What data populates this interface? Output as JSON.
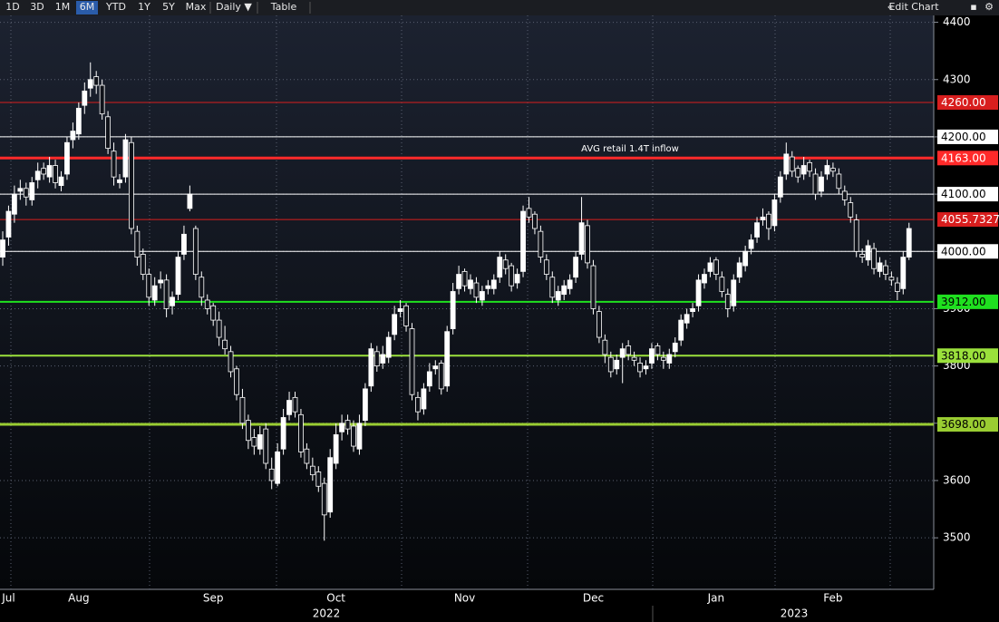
{
  "toolbar": {
    "ranges": [
      "1D",
      "3D",
      "1M",
      "6M",
      "YTD",
      "1Y",
      "5Y",
      "Max"
    ],
    "active": "6M",
    "interval": "Daily ▼",
    "table": "Table",
    "edit": "Edit Chart"
  },
  "chart_data": {
    "type": "candlestick",
    "annotation": "AVG retail 1.4T inflow",
    "year_labels": [
      "2022",
      "2023"
    ],
    "ylim": [
      3410,
      4412
    ],
    "yticks": [
      3500,
      3600,
      3700,
      3800,
      3900,
      4000,
      4100,
      4200,
      4300,
      4400
    ],
    "grid": true,
    "up_color": "#ffffff",
    "down_color": "#10131a",
    "levels": [
      {
        "value": 4260,
        "label": "4260.00",
        "color": "#d81e1e"
      },
      {
        "value": 4200,
        "label": "4200.00",
        "color": "#ffffff"
      },
      {
        "value": 4163,
        "label": "4163.00",
        "color": "#ff2a2a"
      },
      {
        "value": 4100,
        "label": "4100.00",
        "color": "#ffffff"
      },
      {
        "value": 4055.7327,
        "color": "#d81e1e"
      },
      {
        "value": 4000,
        "label": "4000.00",
        "color": "#ffffff"
      },
      {
        "value": 3912,
        "label": "3912.00",
        "color": "#1fe01f"
      },
      {
        "value": 3818,
        "label": "3818.00",
        "color": "#9be13c"
      },
      {
        "value": 3698,
        "label": "3698.00",
        "color": "#9acd32"
      }
    ],
    "categories": [
      null,
      "Jul",
      null,
      null,
      null,
      null,
      null,
      null,
      null,
      null,
      null,
      null,
      null,
      "Aug",
      null,
      null,
      null,
      null,
      null,
      null,
      null,
      null,
      null,
      null,
      null,
      null,
      null,
      null,
      null,
      null,
      null,
      null,
      null,
      null,
      null,
      null,
      "Sep",
      null,
      null,
      null,
      null,
      null,
      null,
      null,
      null,
      null,
      null,
      null,
      null,
      null,
      null,
      null,
      null,
      null,
      null,
      null,
      null,
      "Oct",
      null,
      null,
      null,
      null,
      null,
      null,
      null,
      null,
      null,
      null,
      null,
      null,
      null,
      null,
      null,
      null,
      null,
      null,
      null,
      null,
      null,
      "Nov",
      null,
      null,
      null,
      null,
      null,
      null,
      null,
      null,
      null,
      null,
      null,
      null,
      null,
      null,
      null,
      null,
      null,
      null,
      null,
      null,
      null,
      "Dec",
      null,
      null,
      null,
      null,
      null,
      null,
      null,
      null,
      null,
      null,
      null,
      null,
      null,
      null,
      null,
      null,
      null,
      null,
      null,
      null,
      "Jan",
      null,
      null,
      null,
      null,
      null,
      null,
      null,
      null,
      null,
      null,
      null,
      null,
      null,
      null,
      null,
      null,
      null,
      null,
      null,
      "Feb",
      null,
      null,
      null,
      null,
      null,
      null,
      null,
      null,
      null,
      null,
      null,
      null,
      null
    ],
    "values": [
      [
        3990,
        4035,
        3975,
        4020
      ],
      [
        4025,
        4080,
        4010,
        4070
      ],
      [
        4065,
        4115,
        4050,
        4100
      ],
      [
        4105,
        4125,
        4090,
        4110
      ],
      [
        4110,
        4120,
        4080,
        4095
      ],
      [
        4090,
        4130,
        4080,
        4120
      ],
      [
        4125,
        4155,
        4110,
        4140
      ],
      [
        4145,
        4155,
        4125,
        4135
      ],
      [
        4130,
        4165,
        4120,
        4150
      ],
      [
        4150,
        4160,
        4110,
        4120
      ],
      [
        4115,
        4140,
        4105,
        4130
      ],
      [
        4135,
        4200,
        4125,
        4190
      ],
      [
        4195,
        4225,
        4180,
        4210
      ],
      [
        4205,
        4260,
        4195,
        4250
      ],
      [
        4255,
        4295,
        4240,
        4280
      ],
      [
        4285,
        4330,
        4270,
        4300
      ],
      [
        4305,
        4315,
        4275,
        4290
      ],
      [
        4290,
        4300,
        4230,
        4240
      ],
      [
        4235,
        4245,
        4170,
        4180
      ],
      [
        4175,
        4190,
        4115,
        4130
      ],
      [
        4120,
        4135,
        4110,
        4125
      ],
      [
        4130,
        4205,
        4120,
        4195
      ],
      [
        4190,
        4200,
        4030,
        4040
      ],
      [
        4035,
        4045,
        3975,
        3990
      ],
      [
        3995,
        4005,
        3950,
        3960
      ],
      [
        3960,
        3970,
        3905,
        3920
      ],
      [
        3915,
        3955,
        3905,
        3940
      ],
      [
        3945,
        3965,
        3935,
        3950
      ],
      [
        3950,
        3960,
        3885,
        3900
      ],
      [
        3905,
        3930,
        3890,
        3920
      ],
      [
        3925,
        4000,
        3915,
        3990
      ],
      [
        3995,
        4045,
        3985,
        4030
      ],
      [
        4075,
        4115,
        4070,
        4100
      ],
      [
        4040,
        4045,
        3950,
        3960
      ],
      [
        3955,
        3965,
        3905,
        3920
      ],
      [
        3915,
        3925,
        3890,
        3900
      ],
      [
        3905,
        3910,
        3870,
        3880
      ],
      [
        3880,
        3895,
        3835,
        3850
      ],
      [
        3845,
        3870,
        3820,
        3830
      ],
      [
        3825,
        3835,
        3780,
        3790
      ],
      [
        3795,
        3800,
        3740,
        3750
      ],
      [
        3745,
        3760,
        3690,
        3700
      ],
      [
        3705,
        3715,
        3655,
        3670
      ],
      [
        3675,
        3690,
        3645,
        3660
      ],
      [
        3655,
        3695,
        3645,
        3680
      ],
      [
        3690,
        3700,
        3620,
        3630
      ],
      [
        3620,
        3640,
        3585,
        3600
      ],
      [
        3595,
        3665,
        3590,
        3650
      ],
      [
        3655,
        3725,
        3645,
        3710
      ],
      [
        3715,
        3755,
        3705,
        3740
      ],
      [
        3745,
        3755,
        3710,
        3720
      ],
      [
        3715,
        3725,
        3640,
        3650
      ],
      [
        3655,
        3665,
        3620,
        3630
      ],
      [
        3625,
        3640,
        3600,
        3610
      ],
      [
        3615,
        3625,
        3580,
        3590
      ],
      [
        3595,
        3605,
        3495,
        3540
      ],
      [
        3545,
        3655,
        3535,
        3640
      ],
      [
        3630,
        3700,
        3620,
        3680
      ],
      [
        3685,
        3715,
        3670,
        3700
      ],
      [
        3705,
        3715,
        3680,
        3690
      ],
      [
        3695,
        3705,
        3650,
        3660
      ],
      [
        3655,
        3715,
        3645,
        3700
      ],
      [
        3705,
        3770,
        3695,
        3760
      ],
      [
        3765,
        3840,
        3755,
        3830
      ],
      [
        3825,
        3835,
        3790,
        3800
      ],
      [
        3805,
        3835,
        3795,
        3820
      ],
      [
        3815,
        3860,
        3805,
        3850
      ],
      [
        3855,
        3905,
        3845,
        3890
      ],
      [
        3895,
        3915,
        3885,
        3900
      ],
      [
        3905,
        3910,
        3860,
        3870
      ],
      [
        3865,
        3875,
        3740,
        3750
      ],
      [
        3745,
        3755,
        3705,
        3720
      ],
      [
        3725,
        3770,
        3715,
        3760
      ],
      [
        3765,
        3805,
        3755,
        3790
      ],
      [
        3795,
        3810,
        3785,
        3800
      ],
      [
        3805,
        3810,
        3750,
        3760
      ],
      [
        3765,
        3870,
        3755,
        3860
      ],
      [
        3865,
        3945,
        3855,
        3930
      ],
      [
        3935,
        3975,
        3925,
        3960
      ],
      [
        3965,
        3970,
        3930,
        3940
      ],
      [
        3935,
        3960,
        3925,
        3950
      ],
      [
        3945,
        3955,
        3910,
        3920
      ],
      [
        3915,
        3940,
        3905,
        3930
      ],
      [
        3935,
        3950,
        3925,
        3940
      ],
      [
        3935,
        3960,
        3925,
        3950
      ],
      [
        3955,
        4000,
        3945,
        3990
      ],
      [
        3985,
        3995,
        3960,
        3970
      ],
      [
        3975,
        3980,
        3930,
        3940
      ],
      [
        3945,
        3970,
        3935,
        3960
      ],
      [
        3965,
        4080,
        3955,
        4070
      ],
      [
        4075,
        4095,
        4050,
        4060
      ],
      [
        4065,
        4070,
        4030,
        4040
      ],
      [
        4035,
        4045,
        3980,
        3990
      ],
      [
        3985,
        3995,
        3950,
        3960
      ],
      [
        3955,
        3965,
        3910,
        3920
      ],
      [
        3915,
        3940,
        3905,
        3930
      ],
      [
        3925,
        3950,
        3915,
        3940
      ],
      [
        3935,
        3960,
        3925,
        3950
      ],
      [
        3955,
        4000,
        3945,
        3990
      ],
      [
        3995,
        4095,
        3985,
        4050
      ],
      [
        4045,
        4055,
        3970,
        3980
      ],
      [
        3975,
        3985,
        3890,
        3900
      ],
      [
        3895,
        3905,
        3840,
        3850
      ],
      [
        3845,
        3855,
        3805,
        3820
      ],
      [
        3815,
        3825,
        3780,
        3790
      ],
      [
        3795,
        3820,
        3785,
        3810
      ],
      [
        3815,
        3840,
        3770,
        3830
      ],
      [
        3835,
        3845,
        3810,
        3820
      ],
      [
        3815,
        3825,
        3800,
        3810
      ],
      [
        3805,
        3815,
        3780,
        3790
      ],
      [
        3795,
        3810,
        3785,
        3800
      ],
      [
        3805,
        3840,
        3795,
        3830
      ],
      [
        3835,
        3840,
        3810,
        3820
      ],
      [
        3815,
        3825,
        3795,
        3810
      ],
      [
        3805,
        3830,
        3795,
        3820
      ],
      [
        3825,
        3850,
        3815,
        3840
      ],
      [
        3845,
        3890,
        3835,
        3880
      ],
      [
        3875,
        3900,
        3865,
        3890
      ],
      [
        3895,
        3910,
        3885,
        3900
      ],
      [
        3905,
        3960,
        3895,
        3950
      ],
      [
        3945,
        3970,
        3935,
        3960
      ],
      [
        3965,
        3990,
        3955,
        3980
      ],
      [
        3985,
        3990,
        3950,
        3960
      ],
      [
        3955,
        3965,
        3920,
        3930
      ],
      [
        3925,
        3935,
        3885,
        3900
      ],
      [
        3905,
        3960,
        3895,
        3950
      ],
      [
        3955,
        3990,
        3945,
        3980
      ],
      [
        3975,
        4010,
        3965,
        4000
      ],
      [
        4005,
        4030,
        3995,
        4020
      ],
      [
        4025,
        4060,
        4015,
        4050
      ],
      [
        4055,
        4075,
        4045,
        4060
      ],
      [
        4065,
        4070,
        4020,
        4040
      ],
      [
        4045,
        4100,
        4035,
        4090
      ],
      [
        4095,
        4140,
        4085,
        4130
      ],
      [
        4135,
        4190,
        4125,
        4170
      ],
      [
        4165,
        4175,
        4130,
        4140
      ],
      [
        4145,
        4150,
        4120,
        4130
      ],
      [
        4135,
        4165,
        4125,
        4150
      ],
      [
        4155,
        4160,
        4130,
        4140
      ],
      [
        4135,
        4145,
        4090,
        4100
      ],
      [
        4105,
        4140,
        4095,
        4130
      ],
      [
        4135,
        4160,
        4125,
        4150
      ],
      [
        4145,
        4155,
        4130,
        4140
      ],
      [
        4135,
        4145,
        4100,
        4110
      ],
      [
        4105,
        4115,
        4080,
        4090
      ],
      [
        4085,
        4095,
        4050,
        4060
      ],
      [
        4055,
        4065,
        3990,
        4000
      ],
      [
        3995,
        4005,
        3980,
        3990
      ],
      [
        3985,
        4020,
        3975,
        4010
      ],
      [
        4005,
        4015,
        3960,
        3970
      ],
      [
        3965,
        3990,
        3955,
        3980
      ],
      [
        3975,
        3985,
        3950,
        3960
      ],
      [
        3955,
        3965,
        3940,
        3950
      ],
      [
        3945,
        3955,
        3915,
        3930
      ],
      [
        3935,
        4000,
        3925,
        3990
      ],
      [
        3990,
        4050,
        3985,
        4040
      ]
    ]
  }
}
